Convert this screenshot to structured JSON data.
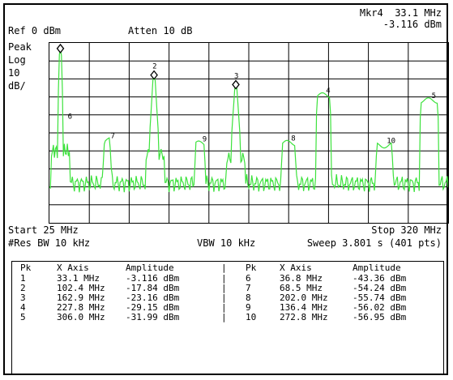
{
  "header": {
    "marker_readout": "Mkr4  33.1 MHz",
    "marker_amplitude": "-3.116 dBm",
    "ref_level": "Ref 0 dBm",
    "attenuation": "Atten 10 dB",
    "detector": "Peak",
    "scale_type": "Log",
    "scale_value": "10",
    "scale_unit": "dB/"
  },
  "footer": {
    "start": "Start 25 MHz",
    "stop": "Stop 320 MHz",
    "res_bw": "#Res BW 10 kHz",
    "vbw": "VBW 10 kHz",
    "sweep": "Sweep 3.801 s (401 pts)"
  },
  "markers": [
    {
      "label": "1",
      "mhz": 33.1,
      "dbm": -3.116,
      "diamond": true
    },
    {
      "label": "2",
      "mhz": 102.4,
      "dbm": -17.84,
      "diamond": true
    },
    {
      "label": "3",
      "mhz": 162.9,
      "dbm": -23.16,
      "diamond": true
    },
    {
      "label": "4",
      "mhz": 227.8,
      "dbm": -29.15
    },
    {
      "label": "5",
      "mhz": 306.0,
      "dbm": -31.99
    },
    {
      "label": "6",
      "mhz": 36.8,
      "dbm": -43.36
    },
    {
      "label": "7",
      "mhz": 68.5,
      "dbm": -54.24
    },
    {
      "label": "8",
      "mhz": 202.0,
      "dbm": -55.74
    },
    {
      "label": "9",
      "mhz": 136.4,
      "dbm": -56.02
    },
    {
      "label": "10",
      "mhz": 272.8,
      "dbm": -56.95
    }
  ],
  "table": {
    "headers": [
      "Pk",
      "X Axis",
      "Amplitude",
      "|",
      "Pk",
      "X Axis",
      "Amplitude"
    ],
    "rows": [
      [
        "1",
        "33.1 MHz",
        "-3.116 dBm",
        "|",
        "6",
        "36.8 MHz",
        "-43.36 dBm"
      ],
      [
        "2",
        "102.4 MHz",
        "-17.84 dBm",
        "|",
        "7",
        "68.5 MHz",
        "-54.24 dBm"
      ],
      [
        "3",
        "162.9 MHz",
        "-23.16 dBm",
        "|",
        "8",
        "202.0 MHz",
        "-55.74 dBm"
      ],
      [
        "4",
        "227.8 MHz",
        "-29.15 dBm",
        "|",
        "9",
        "136.4 MHz",
        "-56.02 dBm"
      ],
      [
        "5",
        "306.0 MHz",
        "-31.99 dBm",
        "|",
        "10",
        "272.8 MHz",
        "-56.95 dBm"
      ]
    ]
  },
  "trace": {
    "color": "#3de23d",
    "x_range_mhz": [
      25,
      320
    ],
    "y_range_dbm": [
      -100,
      0
    ],
    "grid_divisions": {
      "x": 10,
      "y": 10
    }
  }
}
